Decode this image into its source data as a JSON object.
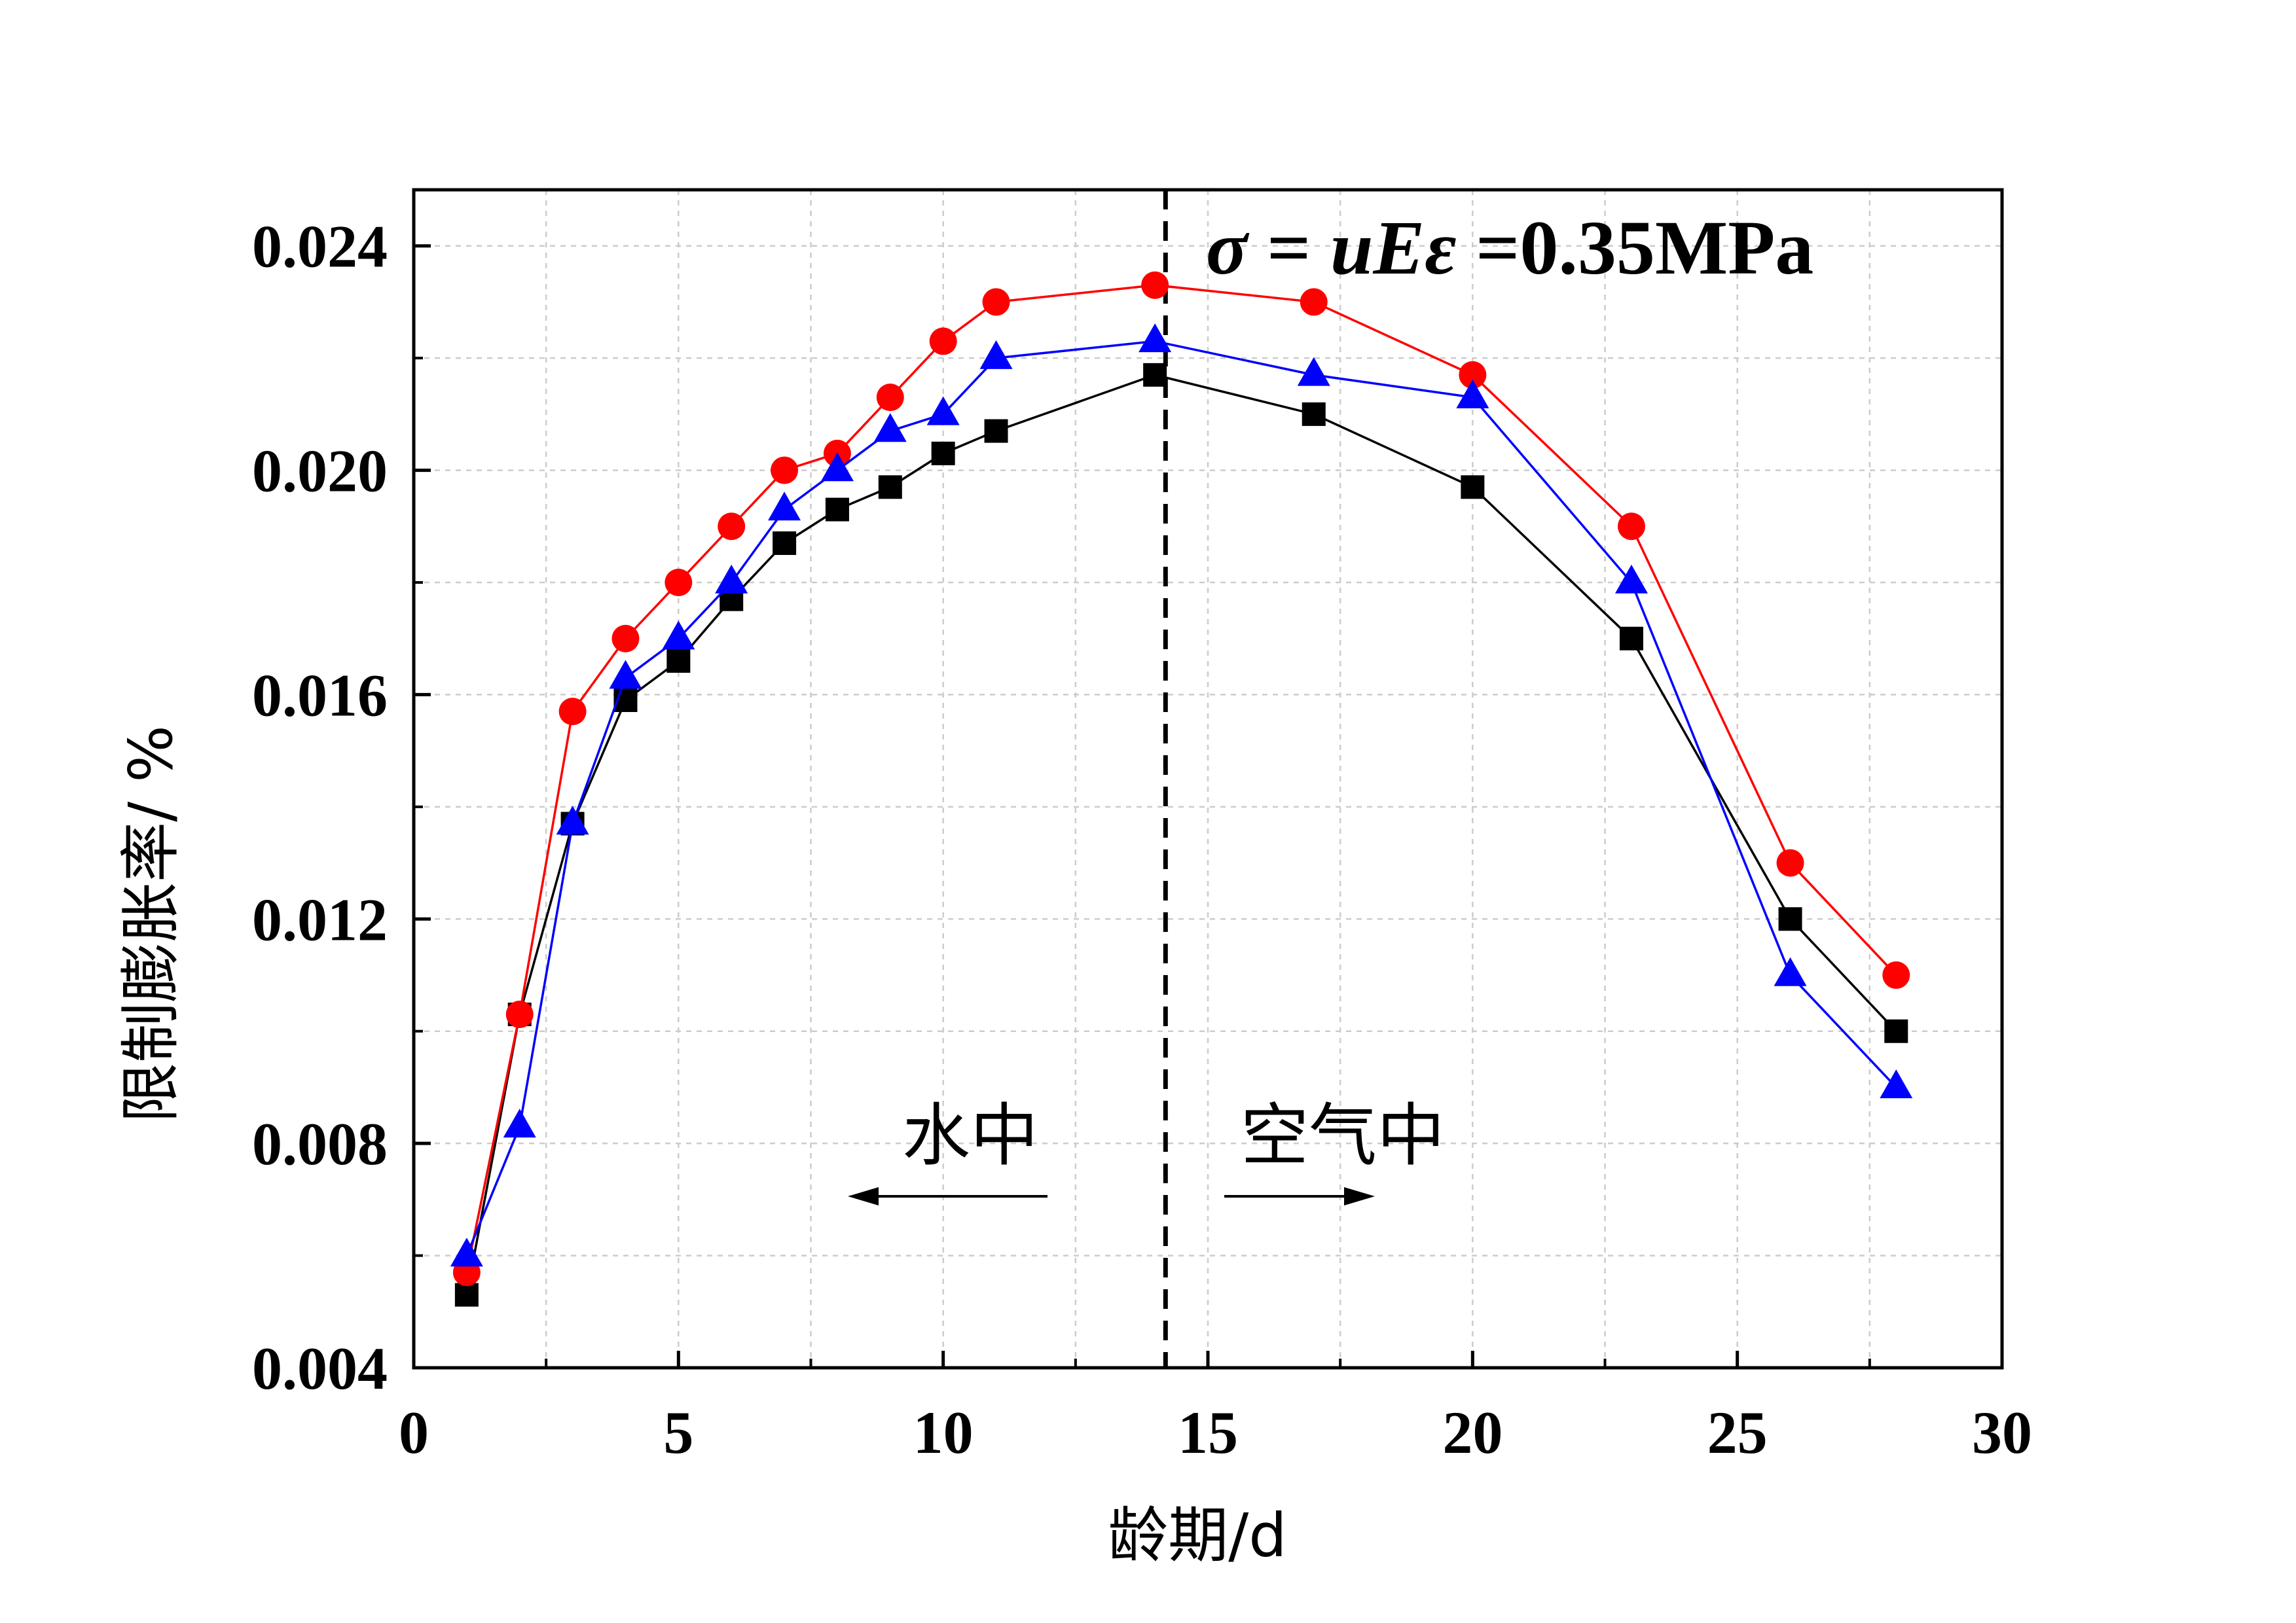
{
  "chart_data": {
    "type": "line",
    "xlabel": "龄期/d",
    "ylabel": "限制膨胀率/ %",
    "xlim": [
      0,
      30
    ],
    "ylim": [
      0.004,
      0.025
    ],
    "x_ticks": [
      0,
      5,
      10,
      15,
      20,
      25,
      30
    ],
    "y_ticks": [
      0.004,
      0.008,
      0.012,
      0.016,
      0.02,
      0.024
    ],
    "x_tick_labels": [
      "0",
      "5",
      "10",
      "15",
      "20",
      "25",
      "30"
    ],
    "y_tick_labels": [
      "0.004",
      "0.008",
      "0.012",
      "0.016",
      "0.020",
      "0.024"
    ],
    "grid": true,
    "divider_x": 14.2,
    "annotations": {
      "formula_parts": [
        "σ",
        "=",
        "uEε",
        "=0.35MPa"
      ],
      "water": "水中",
      "air": "空气中"
    },
    "series": [
      {
        "marker": "square",
        "color": "#000000",
        "x": [
          1,
          2,
          3,
          4,
          5,
          6,
          7,
          8,
          9,
          10,
          11,
          14,
          17,
          20,
          23,
          26,
          28
        ],
        "values": [
          0.0053,
          0.0103,
          0.0137,
          0.0159,
          0.0166,
          0.0177,
          0.0187,
          0.0193,
          0.0197,
          0.0203,
          0.0207,
          0.0217,
          0.021,
          0.0197,
          0.017,
          0.012,
          0.01
        ]
      },
      {
        "marker": "circle",
        "color": "#ff0000",
        "x": [
          1,
          2,
          3,
          4,
          5,
          6,
          7,
          8,
          9,
          10,
          11,
          14,
          17,
          20,
          23,
          26,
          28
        ],
        "values": [
          0.0057,
          0.0103,
          0.0157,
          0.017,
          0.018,
          0.019,
          0.02,
          0.0203,
          0.0213,
          0.0223,
          0.023,
          0.0233,
          0.023,
          0.0217,
          0.019,
          0.013,
          0.011
        ]
      },
      {
        "marker": "triangle",
        "color": "#0000ff",
        "x": [
          1,
          2,
          3,
          4,
          5,
          6,
          7,
          8,
          9,
          10,
          11,
          14,
          17,
          20,
          23,
          26,
          28
        ],
        "values": [
          0.006,
          0.0083,
          0.0137,
          0.0163,
          0.017,
          0.018,
          0.0193,
          0.02,
          0.0207,
          0.021,
          0.022,
          0.0223,
          0.0217,
          0.0213,
          0.018,
          0.011,
          0.009
        ]
      }
    ]
  }
}
